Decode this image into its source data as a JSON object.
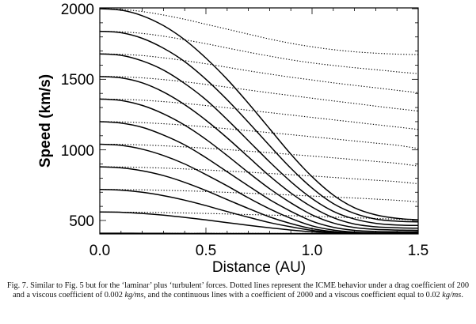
{
  "chart_data": {
    "type": "line",
    "title": "",
    "xlabel": "Distance (AU)",
    "ylabel": "Speed (km/s)",
    "xlim": [
      0.0,
      1.5
    ],
    "ylim": [
      405,
      2000
    ],
    "xticks": [
      "0.0",
      "0.5",
      "1.0",
      "1.5"
    ],
    "yticks": [
      "500",
      "1000",
      "1500",
      "2000"
    ],
    "grid": false,
    "legend": null,
    "x": [
      0.0,
      0.1,
      0.2,
      0.3,
      0.4,
      0.5,
      0.6,
      0.7,
      0.8,
      0.9,
      1.0,
      1.1,
      1.2,
      1.3,
      1.4,
      1.5
    ],
    "series": [
      {
        "name": "solid v0=2000",
        "style": "solid",
        "values": [
          2000,
          1990,
          1950,
          1880,
          1780,
          1650,
          1500,
          1330,
          1150,
          970,
          810,
          680,
          590,
          540,
          515,
          505
        ]
      },
      {
        "name": "solid v0=1840",
        "style": "solid",
        "values": [
          1840,
          1830,
          1790,
          1720,
          1625,
          1500,
          1355,
          1195,
          1030,
          870,
          730,
          620,
          550,
          510,
          495,
          490
        ]
      },
      {
        "name": "solid v0=1680",
        "style": "solid",
        "values": [
          1680,
          1670,
          1630,
          1565,
          1470,
          1355,
          1215,
          1065,
          915,
          775,
          655,
          565,
          510,
          480,
          468,
          465
        ]
      },
      {
        "name": "solid v0=1520",
        "style": "solid",
        "values": [
          1520,
          1510,
          1475,
          1410,
          1320,
          1210,
          1085,
          950,
          815,
          695,
          595,
          520,
          475,
          455,
          448,
          445
        ]
      },
      {
        "name": "solid v0=1360",
        "style": "solid",
        "values": [
          1360,
          1350,
          1315,
          1255,
          1175,
          1075,
          960,
          840,
          725,
          625,
          540,
          482,
          450,
          437,
          432,
          430
        ]
      },
      {
        "name": "solid v0=1200",
        "style": "solid",
        "values": [
          1200,
          1190,
          1160,
          1105,
          1035,
          945,
          845,
          745,
          648,
          565,
          495,
          452,
          430,
          422,
          420,
          420
        ]
      },
      {
        "name": "solid v0=1040",
        "style": "solid",
        "values": [
          1040,
          1032,
          1005,
          960,
          900,
          825,
          745,
          660,
          582,
          515,
          462,
          432,
          418,
          413,
          412,
          412
        ]
      },
      {
        "name": "solid v0=880",
        "style": "solid",
        "values": [
          880,
          873,
          852,
          818,
          770,
          712,
          648,
          585,
          525,
          478,
          442,
          421,
          412,
          409,
          408,
          408
        ]
      },
      {
        "name": "solid v0=720",
        "style": "solid",
        "values": [
          720,
          715,
          700,
          676,
          644,
          605,
          563,
          523,
          485,
          455,
          430,
          415,
          408,
          406,
          406,
          406
        ]
      },
      {
        "name": "solid v0=560",
        "style": "solid",
        "values": [
          560,
          558,
          550,
          538,
          522,
          504,
          485,
          466,
          448,
          432,
          420,
          412,
          408,
          406,
          405,
          405
        ]
      },
      {
        "name": "solid v0=410",
        "style": "solid",
        "values": [
          410,
          410,
          409,
          409,
          408,
          408,
          407,
          407,
          406,
          406,
          406,
          405,
          405,
          405,
          405,
          405
        ]
      },
      {
        "name": "dotted v0=2000",
        "style": "dotted",
        "values": [
          2000,
          1995,
          1980,
          1955,
          1925,
          1890,
          1855,
          1820,
          1785,
          1755,
          1730,
          1710,
          1695,
          1685,
          1678,
          1675
        ]
      },
      {
        "name": "dotted v0=1840",
        "style": "dotted",
        "values": [
          1840,
          1836,
          1825,
          1805,
          1780,
          1752,
          1722,
          1692,
          1664,
          1638,
          1616,
          1598,
          1582,
          1568,
          1553,
          1540
        ]
      },
      {
        "name": "dotted v0=1680",
        "style": "dotted",
        "values": [
          1680,
          1677,
          1668,
          1652,
          1632,
          1610,
          1585,
          1560,
          1537,
          1515,
          1495,
          1475,
          1457,
          1440,
          1422,
          1405
        ]
      },
      {
        "name": "dotted v0=1520",
        "style": "dotted",
        "values": [
          1520,
          1518,
          1510,
          1498,
          1482,
          1464,
          1444,
          1424,
          1404,
          1385,
          1366,
          1347,
          1329,
          1310,
          1292,
          1275
        ]
      },
      {
        "name": "dotted v0=1360",
        "style": "dotted",
        "values": [
          1360,
          1358,
          1352,
          1342,
          1329,
          1314,
          1298,
          1281,
          1264,
          1247,
          1230,
          1213,
          1196,
          1179,
          1162,
          1145
        ]
      },
      {
        "name": "dotted v0=1200",
        "style": "dotted",
        "values": [
          1200,
          1198,
          1193,
          1185,
          1175,
          1163,
          1150,
          1136,
          1122,
          1108,
          1093,
          1078,
          1063,
          1048,
          1033,
          1010
        ]
      },
      {
        "name": "dotted v0=1040",
        "style": "dotted",
        "values": [
          1040,
          1039,
          1035,
          1029,
          1021,
          1012,
          1002,
          991,
          980,
          968,
          956,
          944,
          931,
          918,
          905,
          885
        ]
      },
      {
        "name": "dotted v0=880",
        "style": "dotted",
        "values": [
          880,
          879,
          876,
          871,
          865,
          858,
          850,
          842,
          833,
          824,
          815,
          805,
          795,
          785,
          775,
          760
        ]
      },
      {
        "name": "dotted v0=720",
        "style": "dotted",
        "values": [
          720,
          719,
          717,
          714,
          710,
          705,
          699,
          693,
          687,
          680,
          673,
          666,
          659,
          651,
          643,
          632
        ]
      },
      {
        "name": "dotted v0=560",
        "style": "dotted",
        "values": [
          560,
          559,
          558,
          556,
          553,
          550,
          546,
          542,
          538,
          534,
          529,
          524,
          519,
          514,
          509,
          502
        ]
      },
      {
        "name": "dotted v0=410",
        "style": "dotted",
        "values": [
          410,
          410,
          410,
          410,
          409,
          409,
          409,
          409,
          408,
          408,
          408,
          407,
          407,
          407,
          406,
          406
        ]
      }
    ]
  },
  "caption": {
    "part1": "Fig. 7. Similar to Fig. 5 but for the ‘laminar’ plus ‘turbulent’ forces. Dotted lines represent the ICME behavior under a drag coefficient of 200 and a viscous coefficient of 0.002 ",
    "unit1": "kg/ms",
    "part2": ", and the continuous lines with a coefficient of 2000 and a viscous coefficient equal to 0.02 ",
    "unit2": "kg/ms",
    "part3": "."
  }
}
